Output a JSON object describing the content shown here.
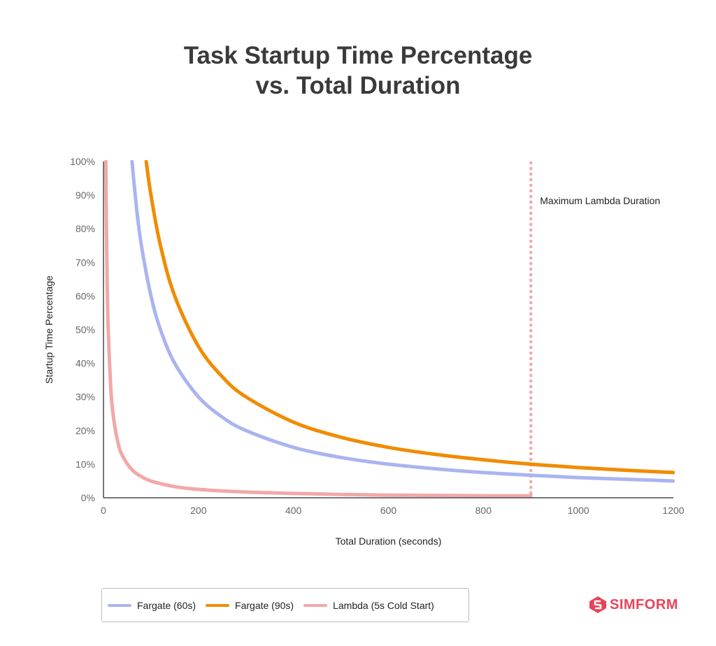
{
  "title_line1": "Task Startup Time Percentage",
  "title_line2": "vs. Total Duration",
  "brand": {
    "name": "SIMFORM",
    "color": "#e8435a"
  },
  "chart_data": {
    "type": "line",
    "title": "Task Startup Time Percentage vs. Total Duration",
    "xlabel": "Total Duration (seconds)",
    "ylabel": "Startup Time Percentage",
    "xlim": [
      0,
      1200
    ],
    "ylim": [
      0,
      100
    ],
    "x_ticks": [
      0,
      200,
      400,
      600,
      800,
      1000,
      1200
    ],
    "y_ticks": [
      0,
      10,
      20,
      30,
      40,
      50,
      60,
      70,
      80,
      90,
      100
    ],
    "y_tick_format": "percent",
    "grid": false,
    "legend_position": "bottom-left",
    "series": [
      {
        "name": "Fargate (60s)",
        "color": "#aab4f0",
        "x": [
          60,
          70,
          80,
          100,
          120,
          150,
          200,
          250,
          300,
          400,
          500,
          600,
          700,
          800,
          900,
          1000,
          1100,
          1200
        ],
        "values": [
          100,
          85.7,
          75,
          60,
          50,
          40,
          30,
          24,
          20,
          15,
          12,
          10,
          8.6,
          7.5,
          6.7,
          6,
          5.5,
          5
        ]
      },
      {
        "name": "Fargate (90s)",
        "color": "#f08c00",
        "x": [
          90,
          100,
          120,
          150,
          200,
          250,
          300,
          400,
          500,
          600,
          700,
          800,
          900,
          1000,
          1100,
          1200
        ],
        "values": [
          100,
          90,
          75,
          60,
          45,
          36,
          30,
          22.5,
          18,
          15,
          12.9,
          11.3,
          10,
          9,
          8.2,
          7.5
        ]
      },
      {
        "name": "Lambda (5s Cold Start)",
        "color": "#f2a8a8",
        "x": [
          5,
          6,
          8,
          10,
          15,
          20,
          30,
          40,
          60,
          80,
          100,
          150,
          200,
          300,
          400,
          500,
          600,
          700,
          800,
          900
        ],
        "values": [
          100,
          83.3,
          62.5,
          50,
          33.3,
          25,
          16.7,
          12.5,
          8.3,
          6.3,
          5,
          3.3,
          2.5,
          1.7,
          1.3,
          1,
          0.8,
          0.7,
          0.6,
          0.6
        ]
      }
    ],
    "annotations": [
      {
        "type": "vline",
        "x": 900,
        "text": "Maximum Lambda Duration",
        "color": "#f2a8a8",
        "style": "dotted"
      }
    ]
  }
}
